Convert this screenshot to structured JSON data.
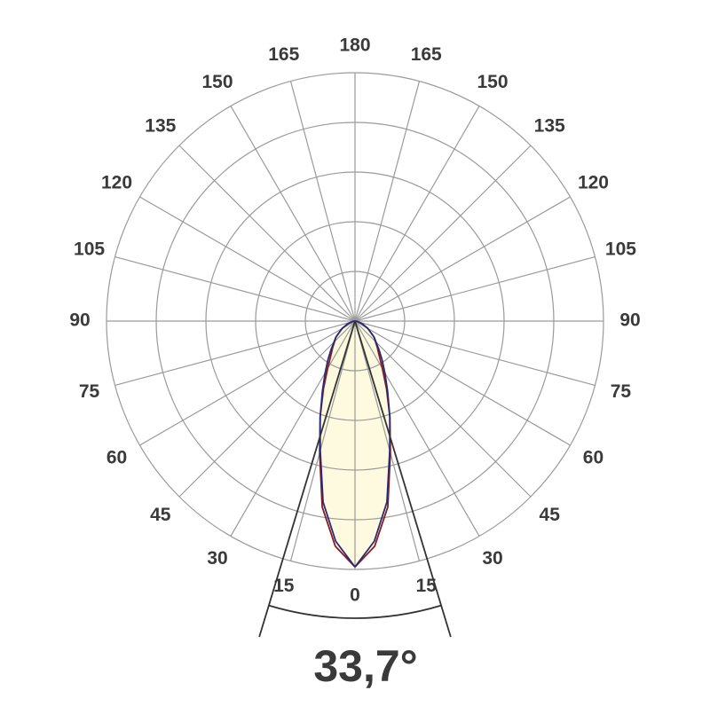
{
  "chart_data": {
    "type": "polar",
    "angle_ticks": [
      0,
      15,
      30,
      45,
      60,
      75,
      90,
      105,
      120,
      135,
      150,
      165,
      180
    ],
    "rlim": [
      0,
      100
    ],
    "rticks": [
      20,
      40,
      60,
      80,
      100
    ],
    "grid": true,
    "x": [
      0,
      5,
      10,
      15,
      20,
      25,
      30,
      35,
      40,
      50,
      60,
      70,
      80,
      90
    ],
    "fill_color": "#fdfae0",
    "series": [
      {
        "color": "#8b1a1a",
        "values": [
          99,
          91,
          76,
          55,
          41,
          30,
          22,
          17,
          14,
          10,
          6,
          3,
          1,
          0
        ]
      },
      {
        "color": "#2a2a7a",
        "values": [
          99,
          89,
          74,
          54,
          41,
          31,
          24,
          19,
          15,
          10,
          6,
          3,
          1,
          0
        ]
      }
    ],
    "beam_angle": {
      "value": 33.7,
      "label": "33,7°"
    }
  }
}
